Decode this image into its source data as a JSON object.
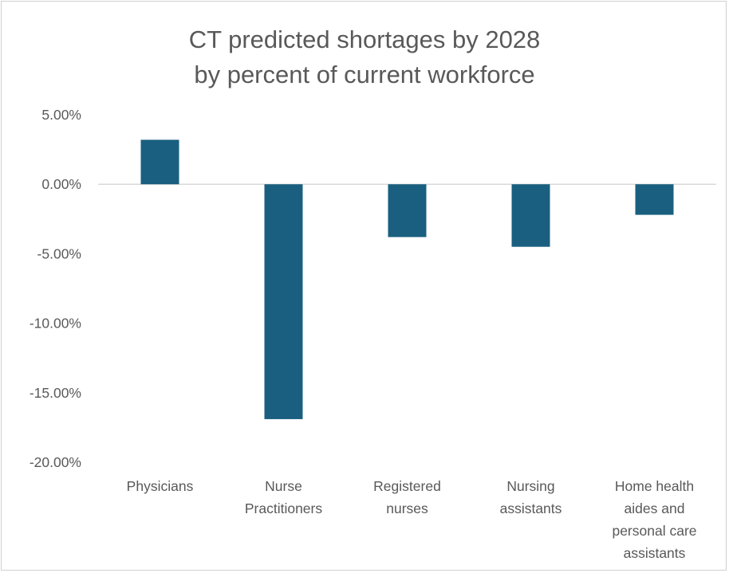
{
  "chart_data": {
    "type": "bar",
    "title": "CT predicted shortages by 2028",
    "subtitle": "by percent of current workforce",
    "categories": [
      [
        "Physicians"
      ],
      [
        "Nurse",
        "Practitioners"
      ],
      [
        "Registered",
        "nurses"
      ],
      [
        "Nursing",
        "assistants"
      ],
      [
        "Home health",
        "aides and",
        "personal care",
        "assistants"
      ]
    ],
    "values": [
      3.2,
      -16.9,
      -3.8,
      -4.5,
      -2.2
    ],
    "ylim": [
      -20,
      5
    ],
    "yticks": [
      5,
      0,
      -5,
      -10,
      -15,
      -20
    ],
    "ytick_labels": [
      "5.00%",
      "0.00%",
      "-5.00%",
      "-10.00%",
      "-15.00%",
      "-20.00%"
    ],
    "bar_color": "#1a5f7f",
    "grid": false,
    "legend": "none"
  }
}
